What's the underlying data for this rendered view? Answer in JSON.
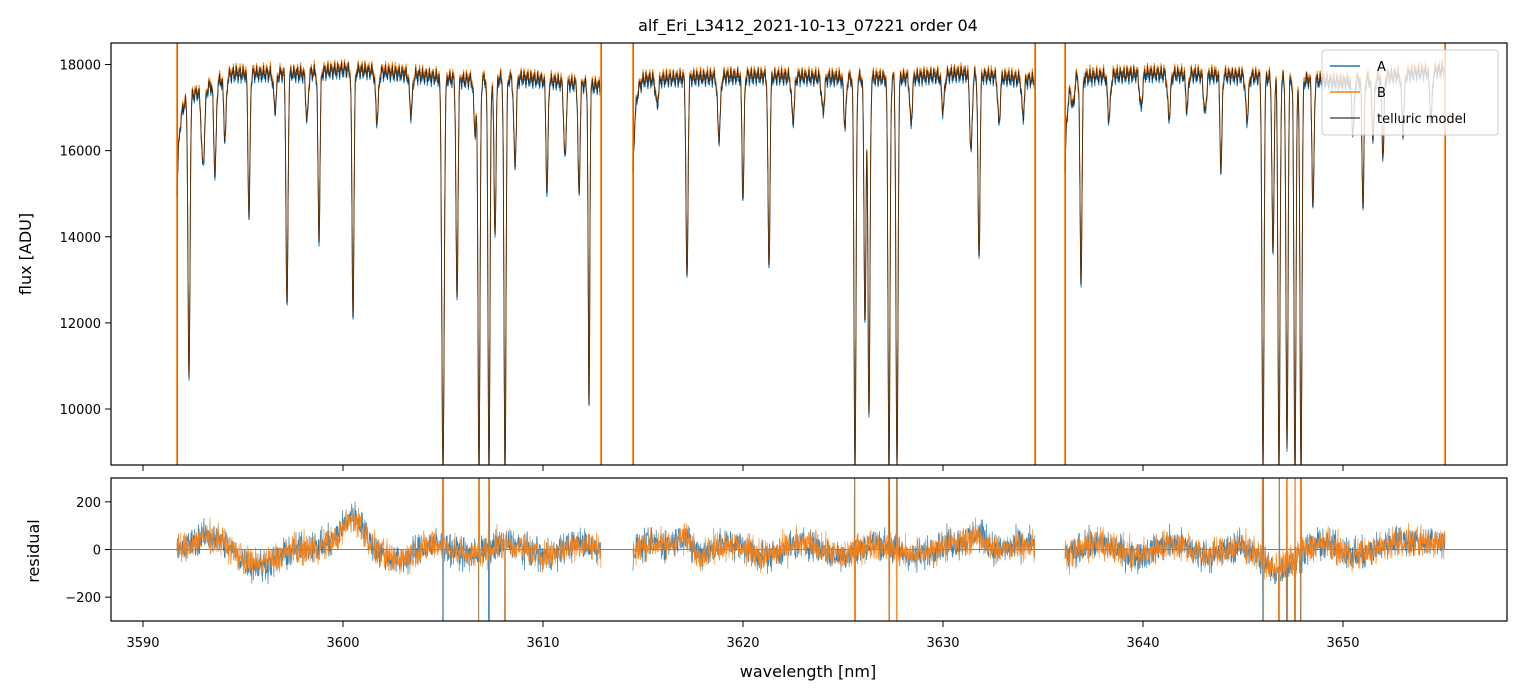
{
  "chart_data": [
    {
      "type": "line",
      "title": "alf_Eri_L3412_2021-10-13_07221  order 04",
      "xlabel": "",
      "ylabel": "flux [ADU]",
      "xlim": [
        3588.4,
        3658.2
      ],
      "ylim": [
        8700,
        18500
      ],
      "x_ticks": [
        3590,
        3600,
        3610,
        3620,
        3630,
        3640,
        3650
      ],
      "y_ticks": [
        10000,
        12000,
        14000,
        16000,
        18000
      ],
      "legend_position": "top-right",
      "grid": false,
      "segments": [
        [
          3591.7,
          3612.9
        ],
        [
          3614.5,
          3634.6
        ],
        [
          3636.1,
          3655.1
        ]
      ],
      "continuum": [
        [
          3591.7,
          17100
        ],
        [
          3594.5,
          17800
        ],
        [
          3598,
          17800
        ],
        [
          3600,
          17900
        ],
        [
          3603,
          17800
        ],
        [
          3606,
          17650
        ],
        [
          3609,
          17700
        ],
        [
          3612.9,
          17500
        ],
        [
          3614.5,
          17650
        ],
        [
          3620,
          17750
        ],
        [
          3625,
          17700
        ],
        [
          3628,
          17700
        ],
        [
          3631,
          17800
        ],
        [
          3634.6,
          17650
        ],
        [
          3636.1,
          17700
        ],
        [
          3640,
          17800
        ],
        [
          3645,
          17750
        ],
        [
          3650,
          17600
        ],
        [
          3655.1,
          17900
        ]
      ],
      "absorption_lines": [
        [
          3592.3,
          10900,
          0.05
        ],
        [
          3593.0,
          15800,
          0.08
        ],
        [
          3593.6,
          15500,
          0.06
        ],
        [
          3594.1,
          16200,
          0.06
        ],
        [
          3595.3,
          14300,
          0.05
        ],
        [
          3596.6,
          16800,
          0.07
        ],
        [
          3597.2,
          12200,
          0.05
        ],
        [
          3598.2,
          16500,
          0.06
        ],
        [
          3598.8,
          13800,
          0.05
        ],
        [
          3600.5,
          12000,
          0.05
        ],
        [
          3601.7,
          16500,
          0.07
        ],
        [
          3603.4,
          16700,
          0.07
        ],
        [
          3605.0,
          8500,
          0.06
        ],
        [
          3605.7,
          12500,
          0.05
        ],
        [
          3606.6,
          16400,
          0.06
        ],
        [
          3606.8,
          8500,
          0.05
        ],
        [
          3607.3,
          8500,
          0.05
        ],
        [
          3607.6,
          14000,
          0.05
        ],
        [
          3608.1,
          8500,
          0.05
        ],
        [
          3608.6,
          15600,
          0.06
        ],
        [
          3610.2,
          15000,
          0.05
        ],
        [
          3611.1,
          15800,
          0.06
        ],
        [
          3611.8,
          15000,
          0.05
        ],
        [
          3612.3,
          10100,
          0.04
        ],
        [
          3615.7,
          17000,
          0.07
        ],
        [
          3617.2,
          12900,
          0.05
        ],
        [
          3618.8,
          16200,
          0.07
        ],
        [
          3620.0,
          14800,
          0.05
        ],
        [
          3621.3,
          13200,
          0.05
        ],
        [
          3622.5,
          16600,
          0.07
        ],
        [
          3624.0,
          16800,
          0.07
        ],
        [
          3625.1,
          16500,
          0.06
        ],
        [
          3625.6,
          8500,
          0.05
        ],
        [
          3626.1,
          12000,
          0.05
        ],
        [
          3626.3,
          9800,
          0.05
        ],
        [
          3627.3,
          8500,
          0.05
        ],
        [
          3627.7,
          8500,
          0.05
        ],
        [
          3628.4,
          16500,
          0.06
        ],
        [
          3630.0,
          16800,
          0.07
        ],
        [
          3631.4,
          15800,
          0.06
        ],
        [
          3631.8,
          13400,
          0.05
        ],
        [
          3632.8,
          16500,
          0.06
        ],
        [
          3634.0,
          16700,
          0.06
        ],
        [
          3636.5,
          17000,
          0.07
        ],
        [
          3636.9,
          12900,
          0.05
        ],
        [
          3638.3,
          16600,
          0.07
        ],
        [
          3639.9,
          16800,
          0.07
        ],
        [
          3641.3,
          16600,
          0.07
        ],
        [
          3642.2,
          16800,
          0.06
        ],
        [
          3643.1,
          16700,
          0.07
        ],
        [
          3643.9,
          15400,
          0.05
        ],
        [
          3645.2,
          16600,
          0.07
        ],
        [
          3646.0,
          8500,
          0.05
        ],
        [
          3646.5,
          13500,
          0.05
        ],
        [
          3646.8,
          8500,
          0.05
        ],
        [
          3647.2,
          9000,
          0.05
        ],
        [
          3647.6,
          8500,
          0.05
        ],
        [
          3647.9,
          8500,
          0.05
        ],
        [
          3648.5,
          14600,
          0.05
        ],
        [
          3650.5,
          16400,
          0.06
        ],
        [
          3651.0,
          14700,
          0.05
        ],
        [
          3651.5,
          16300,
          0.06
        ],
        [
          3652.0,
          15800,
          0.05
        ],
        [
          3653.0,
          16300,
          0.06
        ],
        [
          3654.4,
          16500,
          0.06
        ]
      ],
      "spikes_x": [
        3591.7,
        3612.9,
        3614.5,
        3634.6,
        3636.1,
        3655.1
      ],
      "series": [
        {
          "name": "A",
          "color": "#1f77b4",
          "offset": -60
        },
        {
          "name": "B",
          "color": "#ff7f0e",
          "offset": 60
        },
        {
          "name": "telluric model",
          "color": "#000000",
          "alpha": 0.65,
          "offset": 0
        }
      ]
    },
    {
      "type": "line",
      "xlabel": "wavelength [nm]",
      "ylabel": "residual",
      "xlim": [
        3588.4,
        3658.2
      ],
      "ylim": [
        -300,
        300
      ],
      "x_ticks": [
        3590,
        3600,
        3610,
        3620,
        3630,
        3640,
        3650
      ],
      "y_ticks": [
        -200,
        0,
        200
      ],
      "zero_line": true,
      "noise_amplitude": 55,
      "series": [
        {
          "name": "A",
          "color": "#1f77b4"
        },
        {
          "name": "B",
          "color": "#ff7f0e"
        }
      ]
    }
  ]
}
